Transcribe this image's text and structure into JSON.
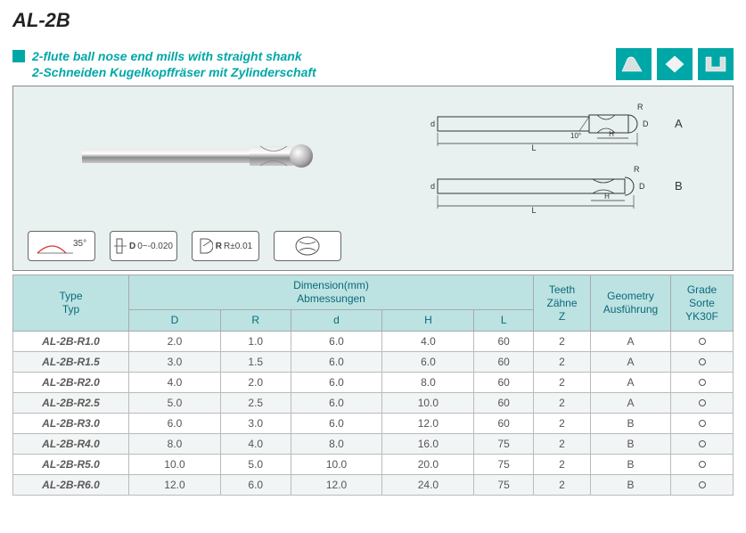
{
  "title": "AL-2B",
  "subtitle_en": "2-flute ball nose end mills with straight shank",
  "subtitle_de": "2-Schneiden Kugelkopffräser mit Zylinderschaft",
  "badges": {
    "angle": "35°",
    "d_tol": "0~-0.020",
    "r_tol": "R±0.01"
  },
  "schematic": {
    "labels": {
      "d": "d",
      "L": "L",
      "H": "H",
      "R": "R",
      "D": "D",
      "angle": "10°"
    },
    "variant_a": "A",
    "variant_b": "B"
  },
  "table": {
    "headers": {
      "type": "Type\nTyp",
      "dimension": "Dimension(mm)\nAbmessungen",
      "D": "D",
      "R": "R",
      "d": "d",
      "H": "H",
      "L": "L",
      "teeth": "Teeth\nZähne\nZ",
      "geometry": "Geometry\nAusführung",
      "grade": "Grade\nSorte\nYK30F"
    },
    "rows": [
      {
        "type": "AL-2B-R1.0",
        "D": "2.0",
        "R": "1.0",
        "d": "6.0",
        "H": "4.0",
        "L": "60",
        "Z": "2",
        "geo": "A",
        "grade": "○"
      },
      {
        "type": "AL-2B-R1.5",
        "D": "3.0",
        "R": "1.5",
        "d": "6.0",
        "H": "6.0",
        "L": "60",
        "Z": "2",
        "geo": "A",
        "grade": "○"
      },
      {
        "type": "AL-2B-R2.0",
        "D": "4.0",
        "R": "2.0",
        "d": "6.0",
        "H": "8.0",
        "L": "60",
        "Z": "2",
        "geo": "A",
        "grade": "○"
      },
      {
        "type": "AL-2B-R2.5",
        "D": "5.0",
        "R": "2.5",
        "d": "6.0",
        "H": "10.0",
        "L": "60",
        "Z": "2",
        "geo": "A",
        "grade": "○"
      },
      {
        "type": "AL-2B-R3.0",
        "D": "6.0",
        "R": "3.0",
        "d": "6.0",
        "H": "12.0",
        "L": "60",
        "Z": "2",
        "geo": "B",
        "grade": "○"
      },
      {
        "type": "AL-2B-R4.0",
        "D": "8.0",
        "R": "4.0",
        "d": "8.0",
        "H": "16.0",
        "L": "75",
        "Z": "2",
        "geo": "B",
        "grade": "○"
      },
      {
        "type": "AL-2B-R5.0",
        "D": "10.0",
        "R": "5.0",
        "d": "10.0",
        "H": "20.0",
        "L": "75",
        "Z": "2",
        "geo": "B",
        "grade": "○"
      },
      {
        "type": "AL-2B-R6.0",
        "D": "12.0",
        "R": "6.0",
        "d": "12.0",
        "H": "24.0",
        "L": "75",
        "Z": "2",
        "geo": "B",
        "grade": "○"
      }
    ]
  },
  "colors": {
    "accent": "#00a7a7",
    "header_bg": "#bce2e2",
    "panel_bg": "#e8f0f0"
  }
}
